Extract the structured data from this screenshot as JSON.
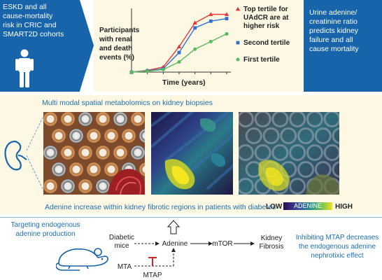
{
  "top_left": {
    "line1": "ESKD and all",
    "line2": "cause-mortality",
    "line3": "risk in CRIC and",
    "line4": "SMART2D cohorts"
  },
  "top_right": {
    "line1": "Urine adenine/",
    "line2": "creatinine ratio",
    "line3": "predicts kidney",
    "line4": "failure and all",
    "line5": "cause mortality"
  },
  "chart_data": {
    "type": "line",
    "ylabel_lines": [
      "Participants",
      "with renal",
      "and death",
      "events (%)"
    ],
    "xlabel": "Time (years)",
    "x": [
      0,
      1,
      2,
      3,
      4,
      5,
      6
    ],
    "series": [
      {
        "name_lines": [
          "Top tertile for",
          "UAdCR are at",
          "higher risk"
        ],
        "color": "#e53935",
        "marker": "triangle",
        "values": [
          0,
          2,
          6,
          30,
          58,
          68,
          68
        ]
      },
      {
        "name_lines": [
          "Second tertile"
        ],
        "color": "#2f6fd0",
        "marker": "square",
        "values": [
          0,
          1.5,
          4,
          23,
          52,
          60,
          63
        ]
      },
      {
        "name_lines": [
          "First tertile"
        ],
        "color": "#5cb85c",
        "marker": "circle",
        "values": [
          0,
          1,
          3,
          12,
          27,
          36,
          45
        ]
      }
    ],
    "ylim": [
      0,
      75
    ],
    "grid": false
  },
  "middle": {
    "title": "Multi modal spatial metabolomics on kidney biopsies",
    "caption": "Adenine increase within kidney fibrotic regions in patients with diabetes",
    "scale": {
      "low": "LOW",
      "mid": "ADENINE",
      "high": "HIGH"
    }
  },
  "bottom": {
    "left_line1": "Targeting endogenous",
    "left_line2": "adenine production",
    "right_line1": "Inhibiting MTAP decreases",
    "right_line2": "the endogenous adenine",
    "right_line3": "nephrotixic effect",
    "pathway": {
      "diabetic_line1": "Diabetic",
      "diabetic_line2": "mice",
      "adenine": "Adenine",
      "mtor": "mTOR",
      "kidney_line1": "Kidney",
      "kidney_line2": "Fibrosis",
      "mta": "MTA",
      "mtap": "MTAP"
    }
  },
  "colors": {
    "brand_blue": "#1764ab",
    "cream": "#fdf8e3",
    "text_blue": "#1f6fb5"
  },
  "icons": [
    "person-icon",
    "kidney-icon",
    "mouse-icon"
  ]
}
